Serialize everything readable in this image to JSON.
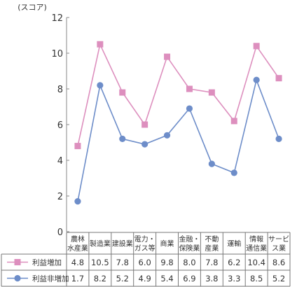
{
  "chart_data": {
    "type": "line",
    "y_unit_label": "(スコア)",
    "ylim": [
      0,
      12
    ],
    "yticks": [
      0,
      2,
      4,
      6,
      8,
      10,
      12
    ],
    "categories": [
      [
        "農林",
        "水産業"
      ],
      [
        "製造業"
      ],
      [
        "建設業"
      ],
      [
        "電力・",
        "ガス等"
      ],
      [
        "商業"
      ],
      [
        "金融・",
        "保険業"
      ],
      [
        "不動",
        "産業"
      ],
      [
        "運輸"
      ],
      [
        "情報",
        "通信業"
      ],
      [
        "サービ",
        "ス業"
      ]
    ],
    "series": [
      {
        "name": "利益増加",
        "color": "#dd8fbe",
        "marker": "square",
        "values": [
          4.8,
          10.5,
          7.8,
          6.0,
          9.8,
          8.0,
          7.8,
          6.2,
          10.4,
          8.6
        ],
        "labels": [
          "4.8",
          "10.5",
          "7.8",
          "6.0",
          "9.8",
          "8.0",
          "7.8",
          "6.2",
          "10.4",
          "8.6"
        ]
      },
      {
        "name": "利益非増加",
        "color": "#6d8dc9",
        "marker": "circle",
        "values": [
          1.7,
          8.2,
          5.2,
          4.9,
          5.4,
          6.9,
          3.8,
          3.3,
          8.5,
          5.2
        ],
        "labels": [
          "1.7",
          "8.2",
          "5.2",
          "4.9",
          "5.4",
          "6.9",
          "3.8",
          "3.3",
          "8.5",
          "5.2"
        ]
      }
    ],
    "grid": false,
    "data_table": true
  }
}
